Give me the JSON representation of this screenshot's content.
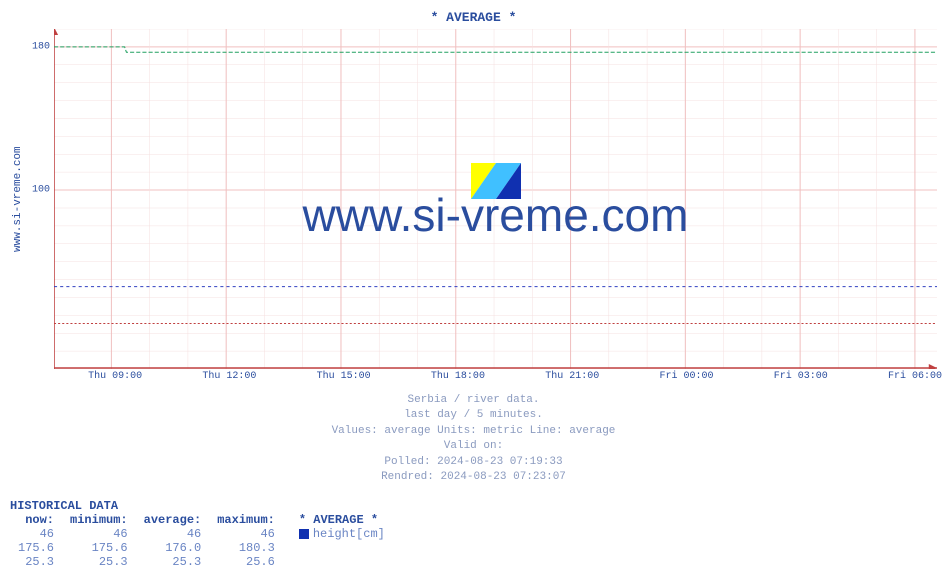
{
  "chart": {
    "title": "* AVERAGE *",
    "type": "line",
    "y_axis_label": "www.si-vreme.com",
    "watermark_text": "www.si-vreme.com",
    "background_color": "#ffffff",
    "plot_bg": "#ffffff",
    "grid_color_major": "#f0c0c0",
    "grid_color_minor": "#f5e0e0",
    "axis_color": "#c04040",
    "ylim": [
      0,
      190
    ],
    "yticks": [
      {
        "value": 180,
        "label": "180"
      },
      {
        "value": 100,
        "label": "100"
      }
    ],
    "xticks": [
      {
        "pos": 0.065,
        "label": "Thu 09:00"
      },
      {
        "pos": 0.195,
        "label": "Thu 12:00"
      },
      {
        "pos": 0.325,
        "label": "Thu 15:00"
      },
      {
        "pos": 0.455,
        "label": "Thu 18:00"
      },
      {
        "pos": 0.585,
        "label": "Thu 21:00"
      },
      {
        "pos": 0.715,
        "label": "Fri 00:00"
      },
      {
        "pos": 0.845,
        "label": "Fri 03:00"
      },
      {
        "pos": 0.975,
        "label": "Fri 06:00"
      }
    ],
    "series": [
      {
        "name": "height_cm",
        "color": "#20a060",
        "dash": "4 2",
        "width": 1,
        "points": [
          [
            0,
            180
          ],
          [
            0.08,
            180
          ],
          [
            0.082,
            177
          ],
          [
            1,
            177
          ]
        ]
      },
      {
        "name": "series2",
        "color": "#3040c0",
        "dash": "3 3",
        "width": 1,
        "points": [
          [
            0,
            46
          ],
          [
            1,
            46
          ]
        ]
      },
      {
        "name": "series3",
        "color": "#c04040",
        "dash": "2 2",
        "width": 1,
        "points": [
          [
            0,
            25.4
          ],
          [
            1,
            25.4
          ]
        ]
      }
    ],
    "logo": {
      "colors": [
        "#ffff00",
        "#40c0ff",
        "#1030b0"
      ]
    }
  },
  "caption": {
    "l1": "Serbia / river data.",
    "l2": "last day / 5 minutes.",
    "l3": "Values: average  Units: metric  Line: average",
    "l4": "Valid on:",
    "l5": "Polled: 2024-08-23 07:19:33",
    "l6": "Rendred: 2024-08-23 07:23:07"
  },
  "historical": {
    "title": "HISTORICAL DATA",
    "headers": {
      "now": "now:",
      "min": "minimum:",
      "avg": "average:",
      "max": "maximum:",
      "legend": "* AVERAGE *"
    },
    "legend_label": "height[cm]",
    "legend_color": "#1030b0",
    "rows": [
      {
        "now": "46",
        "min": "46",
        "avg": "46",
        "max": "46"
      },
      {
        "now": "175.6",
        "min": "175.6",
        "avg": "176.0",
        "max": "180.3"
      },
      {
        "now": "25.3",
        "min": "25.3",
        "avg": "25.3",
        "max": "25.6"
      }
    ]
  }
}
